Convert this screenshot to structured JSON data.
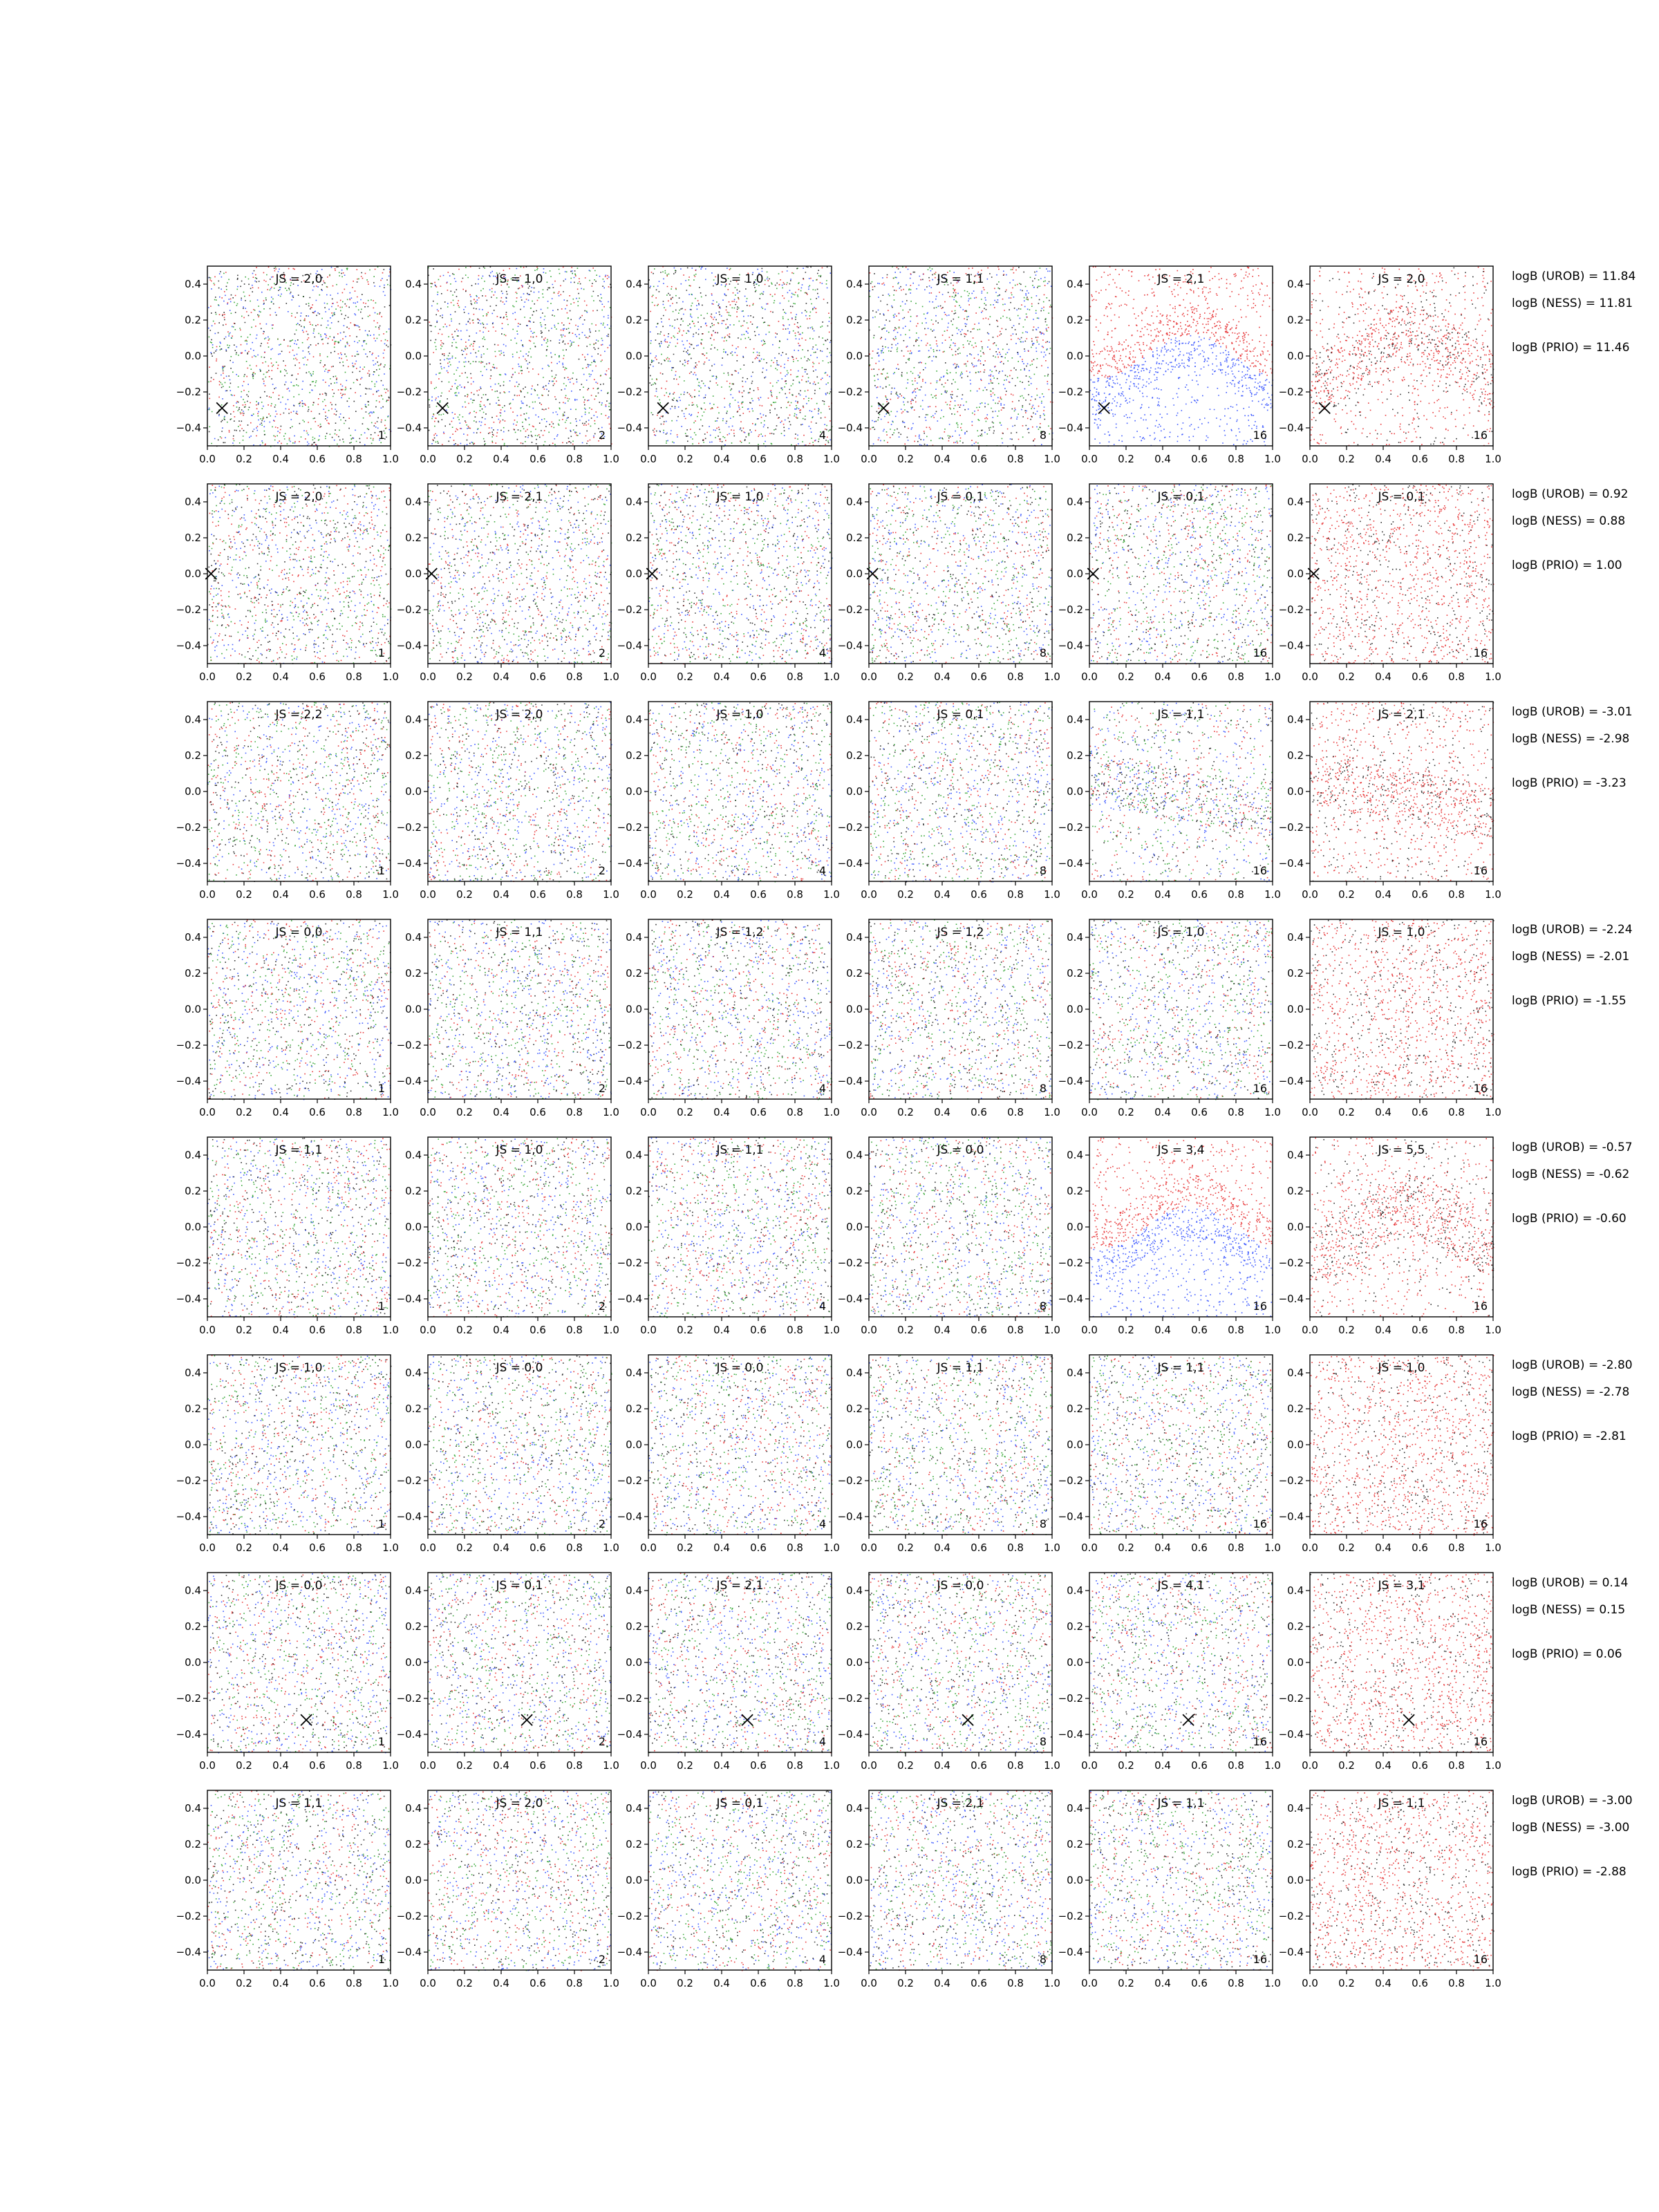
{
  "chart_data": {
    "type": "scatter",
    "layout": {
      "rows": 8,
      "cols": 6
    },
    "xlim": [
      0.0,
      1.0
    ],
    "ylim": [
      -0.5,
      0.5
    ],
    "xticks": [
      "0.0",
      "0.2",
      "0.4",
      "0.6",
      "0.8",
      "1.0"
    ],
    "yticks": [
      "−0.4",
      "−0.2",
      "0.0",
      "0.2",
      "0.4"
    ],
    "ytick_values": [
      -0.4,
      -0.2,
      0.0,
      0.2,
      0.4
    ],
    "xtick_values": [
      0.0,
      0.2,
      0.4,
      0.6,
      0.8,
      1.0
    ],
    "panel_counts": [
      "1",
      "2",
      "4",
      "8",
      "16",
      "16"
    ],
    "colors": {
      "blue": "#1f3fff",
      "red": "#e41a1c",
      "green": "#1a9a1a",
      "black": "#111111",
      "marker": "#000000"
    },
    "rows": [
      {
        "js": [
          "JS = 2,0",
          "JS = 1,0",
          "JS = 1,0",
          "JS = 1,1",
          "JS = 2,1",
          "JS = 2,0"
        ],
        "logb_urob": "logB (UROB) = 11.84",
        "logb_ness": "logB (NESS) = 11.81",
        "logb_prio": "logB (PRIO) = 11.46",
        "marker": {
          "x": 0.08,
          "y": -0.29
        },
        "marker_panels": 6,
        "pattern": "wave"
      },
      {
        "js": [
          "JS = 2,0",
          "JS = 2,1",
          "JS = 1,0",
          "JS = 0,1",
          "JS = 0,1",
          "JS = 0,1"
        ],
        "logb_urob": "logB (UROB) = 0.92",
        "logb_ness": "logB (NESS) = 0.88",
        "logb_prio": "logB (PRIO) = 1.00",
        "marker": {
          "x": 0.02,
          "y": 0.0
        },
        "marker_panels": 6,
        "pattern": "uniform"
      },
      {
        "js": [
          "JS = 2,2",
          "JS = 2,0",
          "JS = 1,0",
          "JS = 0,1",
          "JS = 1,1",
          "JS = 2,1"
        ],
        "logb_urob": "logB (UROB) = -3.01",
        "logb_ness": "logB (NESS) = -2.98",
        "logb_prio": "logB (PRIO) = -3.23",
        "marker": null,
        "marker_panels": 0,
        "pattern": "slope"
      },
      {
        "js": [
          "JS = 0,0",
          "JS = 1,1",
          "JS = 1,2",
          "JS = 1,2",
          "JS = 1,0",
          "JS = 1,0"
        ],
        "logb_urob": "logB (UROB) = -2.24",
        "logb_ness": "logB (NESS) = -2.01",
        "logb_prio": "logB (PRIO) = -1.55",
        "marker": null,
        "marker_panels": 0,
        "pattern": "uniform"
      },
      {
        "js": [
          "JS = 1,1",
          "JS = 1,0",
          "JS = 1,1",
          "JS = 0,0",
          "JS = 3,4",
          "JS = 5,5"
        ],
        "logb_urob": "logB (UROB) = -0.57",
        "logb_ness": "logB (NESS) = -0.62",
        "logb_prio": "logB (PRIO) = -0.60",
        "marker": null,
        "marker_panels": 0,
        "pattern": "wave"
      },
      {
        "js": [
          "JS = 1,0",
          "JS = 0,0",
          "JS = 0,0",
          "JS = 1,1",
          "JS = 1,1",
          "JS = 1,0"
        ],
        "logb_urob": "logB (UROB) = -2.80",
        "logb_ness": "logB (NESS) = -2.78",
        "logb_prio": "logB (PRIO) = -2.81",
        "marker": null,
        "marker_panels": 0,
        "pattern": "uniform"
      },
      {
        "js": [
          "JS = 0,0",
          "JS = 0,1",
          "JS = 2,1",
          "JS = 0,0",
          "JS = 4,1",
          "JS = 3,1"
        ],
        "logb_urob": "logB (UROB) = 0.14",
        "logb_ness": "logB (NESS) = 0.15",
        "logb_prio": "logB (PRIO) = 0.06",
        "marker": {
          "x": 0.54,
          "y": -0.32
        },
        "marker_panels": 6,
        "pattern": "uniform"
      },
      {
        "js": [
          "JS = 1,1",
          "JS = 2,0",
          "JS = 0,1",
          "JS = 2,1",
          "JS = 1,1",
          "JS = 1,1"
        ],
        "logb_urob": "logB (UROB) = -3.00",
        "logb_ness": "logB (NESS) = -3.00",
        "logb_prio": "logB (PRIO) = -2.88",
        "marker": null,
        "marker_panels": 0,
        "pattern": "uniform"
      }
    ]
  }
}
